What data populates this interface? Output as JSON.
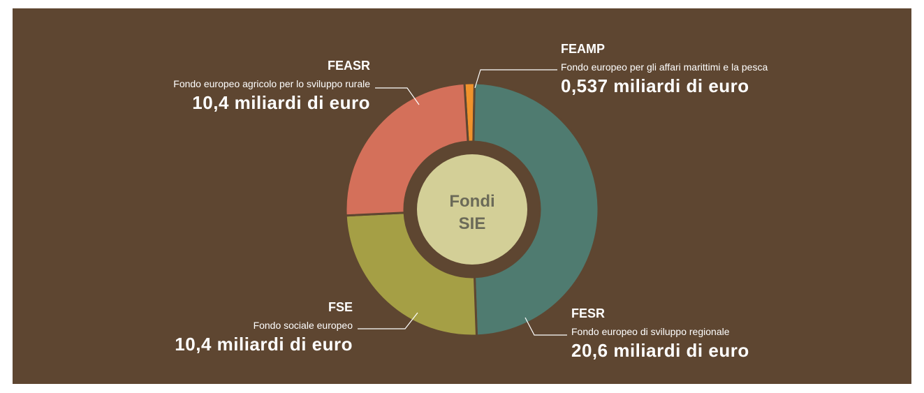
{
  "chart_data": {
    "type": "pie",
    "categories": [
      "FEAMP",
      "FESR",
      "FSE",
      "FEASR"
    ],
    "descriptions": [
      "Fondo europeo per gli affari marittimi e la pesca",
      "Fondo europeo di sviluppo regionale",
      "Fondo sociale europeo",
      "Fondo europeo agricolo per lo sviluppo rurale"
    ],
    "values": [
      0.537,
      20.6,
      10.4,
      10.4
    ],
    "value_labels": [
      "0,537 miliardi di euro",
      "20,6 miliardi di euro",
      "10,4 miliardi di euro",
      "10,4 miliardi di euro"
    ],
    "colors": [
      "#f0922b",
      "#4f7b70",
      "#a59f45",
      "#d4705a"
    ],
    "center_label": [
      "Fondi",
      "SIE"
    ]
  }
}
